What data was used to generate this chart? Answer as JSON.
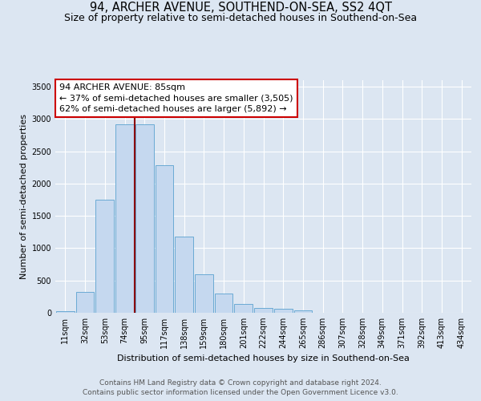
{
  "title": "94, ARCHER AVENUE, SOUTHEND-ON-SEA, SS2 4QT",
  "subtitle": "Size of property relative to semi-detached houses in Southend-on-Sea",
  "xlabel": "Distribution of semi-detached houses by size in Southend-on-Sea",
  "ylabel": "Number of semi-detached properties",
  "footnote1": "Contains HM Land Registry data © Crown copyright and database right 2024.",
  "footnote2": "Contains public sector information licensed under the Open Government Licence v3.0.",
  "bar_labels": [
    "11sqm",
    "32sqm",
    "53sqm",
    "74sqm",
    "95sqm",
    "117sqm",
    "138sqm",
    "159sqm",
    "180sqm",
    "201sqm",
    "222sqm",
    "244sqm",
    "265sqm",
    "286sqm",
    "307sqm",
    "328sqm",
    "349sqm",
    "371sqm",
    "392sqm",
    "413sqm",
    "434sqm"
  ],
  "bar_values": [
    30,
    320,
    1750,
    2920,
    2920,
    2280,
    1185,
    600,
    295,
    135,
    80,
    60,
    35,
    4,
    2,
    1,
    1,
    1,
    1,
    1,
    1
  ],
  "bar_color": "#c5d8ef",
  "bar_edge_color": "#6aaad4",
  "property_line_x": 3.5,
  "annotation_line1": "94 ARCHER AVENUE: 85sqm",
  "annotation_line2": "← 37% of semi-detached houses are smaller (3,505)",
  "annotation_line3": "62% of semi-detached houses are larger (5,892) →",
  "annotation_box_color": "#ffffff",
  "annotation_box_edge": "#cc0000",
  "vline_color": "#8b0000",
  "ylim": [
    0,
    3600
  ],
  "yticks": [
    0,
    500,
    1000,
    1500,
    2000,
    2500,
    3000,
    3500
  ],
  "background_color": "#dce6f2",
  "plot_background": "#dce6f2",
  "grid_color": "#ffffff",
  "title_fontsize": 10.5,
  "subtitle_fontsize": 9,
  "axis_label_fontsize": 8,
  "tick_fontsize": 7,
  "annot_fontsize": 8,
  "footnote_fontsize": 6.5
}
